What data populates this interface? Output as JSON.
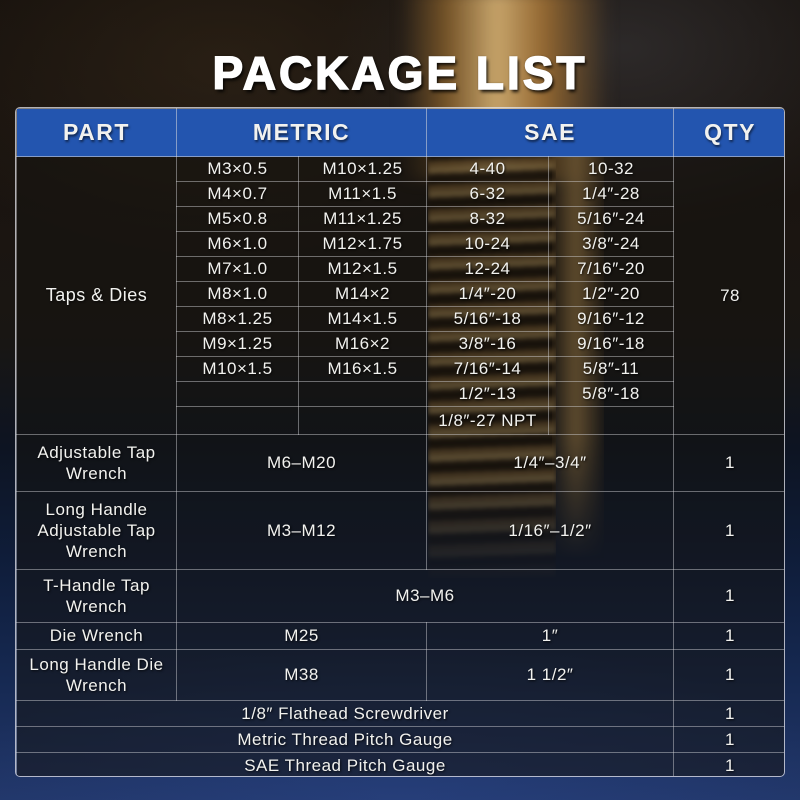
{
  "title": "PACKAGE LIST",
  "colors": {
    "header_bg": "#2355af",
    "header_text": "#ffffff",
    "body_text": "#f2f2ef",
    "grid_line": "#d8d8dc",
    "background_top": "#16110d",
    "background_bottom": "#22376a",
    "tap_gold": "#c9a167"
  },
  "table": {
    "headers": {
      "part": "PART",
      "metric": "METRIC",
      "sae": "SAE",
      "qty": "QTY"
    },
    "section": {
      "part": "Taps & Dies",
      "qty": "78",
      "rows": [
        {
          "m1": "M3×0.5",
          "m2": "M10×1.25",
          "s1": "4-40",
          "s2": "10-32"
        },
        {
          "m1": "M4×0.7",
          "m2": "M11×1.5",
          "s1": "6-32",
          "s2": "1/4″-28"
        },
        {
          "m1": "M5×0.8",
          "m2": "M11×1.25",
          "s1": "8-32",
          "s2": "5/16″-24"
        },
        {
          "m1": "M6×1.0",
          "m2": "M12×1.75",
          "s1": "10-24",
          "s2": "3/8″-24"
        },
        {
          "m1": "M7×1.0",
          "m2": "M12×1.5",
          "s1": "12-24",
          "s2": "7/16″-20"
        },
        {
          "m1": "M8×1.0",
          "m2": "M14×2",
          "s1": "1/4″-20",
          "s2": "1/2″-20"
        },
        {
          "m1": "M8×1.25",
          "m2": "M14×1.5",
          "s1": "5/16″-18",
          "s2": "9/16″-12"
        },
        {
          "m1": "M9×1.25",
          "m2": "M16×2",
          "s1": "3/8″-16",
          "s2": "9/16″-18"
        },
        {
          "m1": "M10×1.5",
          "m2": "M16×1.5",
          "s1": "7/16″-14",
          "s2": "5/8″-11"
        },
        {
          "m1": "",
          "m2": "",
          "s1": "1/2″-13",
          "s2": "5/8″-18"
        },
        {
          "m1": "",
          "m2": "",
          "s1": "1/8″-27 NPT",
          "s2": ""
        }
      ]
    },
    "tool_rows": [
      {
        "part": "Adjustable Tap Wrench",
        "metric": "M6–M20",
        "sae": "1/4″–3/4″",
        "qty": "1"
      },
      {
        "part": "Long Handle Adjustable Tap Wrench",
        "metric": "M3–M12",
        "sae": "1/16″–1/2″",
        "qty": "1"
      },
      {
        "part": "T-Handle Tap Wrench",
        "range": "M3–M6",
        "qty": "1"
      },
      {
        "part": "Die Wrench",
        "metric": "M25",
        "sae": "1″",
        "qty": "1"
      },
      {
        "part": "Long Handle Die Wrench",
        "metric": "M38",
        "sae": "1 1/2″",
        "qty": "1"
      }
    ],
    "merged_rows": [
      {
        "label": "1/8″ Flathead Screwdriver",
        "qty": "1"
      },
      {
        "label": "Metric Thread Pitch Gauge",
        "qty": "1"
      },
      {
        "label": "SAE Thread Pitch Gauge",
        "qty": "1"
      }
    ]
  }
}
